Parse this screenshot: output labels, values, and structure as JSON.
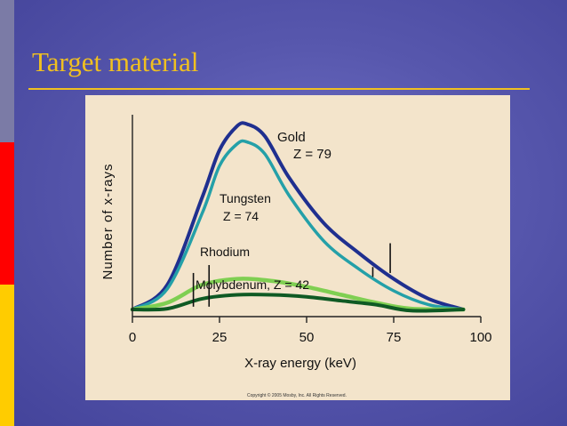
{
  "slide": {
    "title": "Target material"
  },
  "figure": {
    "copyright": "Copyright © 2005 Mosby, Inc. All Rights Reserved."
  },
  "colors": {
    "gold": "#1f2f8f",
    "tungsten": "#24a0a8",
    "rhodium": "#7fcf52",
    "molybdenum": "#0f5a24",
    "title": "#f0c020"
  },
  "chart_data": {
    "type": "line",
    "xlabel": "X-ray energy (keV)",
    "ylabel": "Number of x-rays",
    "xlim": [
      0,
      100
    ],
    "ylim": [
      0,
      1
    ],
    "xticks": [
      "0",
      "25",
      "50",
      "75",
      "100"
    ],
    "grid": false,
    "series": [
      {
        "key": "gold",
        "name_line1": "Gold",
        "name_line2": "Z = 79",
        "x": [
          0,
          10,
          20,
          25,
          30,
          33,
          38,
          45,
          55,
          65,
          75,
          85,
          95
        ],
        "y": [
          0,
          0.16,
          0.6,
          0.84,
          0.96,
          0.97,
          0.91,
          0.7,
          0.47,
          0.32,
          0.19,
          0.09,
          0
        ]
      },
      {
        "key": "tungsten",
        "name_line1": "Tungsten",
        "name_line2": "Z = 74",
        "x": [
          0,
          10,
          20,
          25,
          30,
          33,
          38,
          45,
          55,
          65,
          75,
          85,
          95
        ],
        "y": [
          0,
          0.14,
          0.52,
          0.76,
          0.87,
          0.88,
          0.82,
          0.61,
          0.38,
          0.24,
          0.13,
          0.06,
          0
        ]
      },
      {
        "key": "rhodium",
        "name_line1": "Rhodium",
        "x": [
          0,
          10,
          20,
          30,
          40,
          50,
          60,
          70,
          80,
          95
        ],
        "y": [
          0,
          0.07,
          0.16,
          0.19,
          0.18,
          0.15,
          0.11,
          0.07,
          0.04,
          0
        ]
      },
      {
        "key": "molybdenum",
        "name_line1": "Molybdenum, Z = 42",
        "x": [
          0,
          10,
          20,
          30,
          40,
          50,
          60,
          70,
          80,
          95
        ],
        "y": [
          0,
          0.04,
          0.09,
          0.11,
          0.11,
          0.1,
          0.08,
          0.06,
          0.03,
          0
        ]
      }
    ],
    "characteristic_lines_kev": [
      {
        "x": 17.5,
        "y_from": 0.05,
        "y_to": 0.22
      },
      {
        "x": 22,
        "y_from": 0.05,
        "y_to": 0.26
      },
      {
        "x": 69,
        "y_from": 0.2,
        "y_to": 0.25
      },
      {
        "x": 74,
        "y_from": 0.22,
        "y_to": 0.37
      }
    ]
  }
}
